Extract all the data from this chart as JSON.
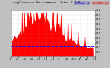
{
  "title": "Avg/Inverter Performance  Date: 2-1-0",
  "legend_actual": "ACTUAL kW",
  "legend_average": "AVERAGE kW",
  "bg_color": "#c0c0c0",
  "plot_bg_color": "#ffffff",
  "bar_color": "#ff0000",
  "avg_line_color": "#0000ff",
  "grid_color": "#aaaaaa",
  "text_color": "#000000",
  "title_color": "#000000",
  "n_points": 400,
  "avg_level": 0.22,
  "ylim_max": 1.0,
  "ytick_labels": [
    "0.1",
    "0.2",
    "0.3",
    "0.4",
    "0.5",
    "0.6",
    "0.7",
    "0.8",
    "0.9",
    "1.0"
  ],
  "ytick_vals": [
    0.1,
    0.2,
    0.3,
    0.4,
    0.5,
    0.6,
    0.7,
    0.8,
    0.9,
    1.0
  ],
  "n_xgrid": 13,
  "n_ygrid": 10
}
